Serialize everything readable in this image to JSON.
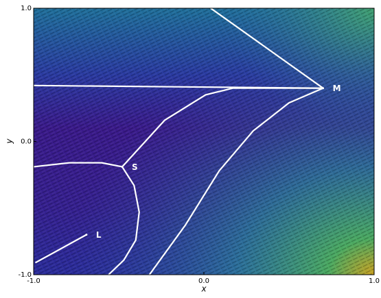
{
  "chart_data": {
    "type": "streamplot",
    "xlabel": "x",
    "ylabel": "y",
    "xlim": [
      -1,
      1
    ],
    "ylim": [
      -1,
      1
    ],
    "xticks": [
      {
        "value": -1,
        "label": "-1.0"
      },
      {
        "value": 0,
        "label": "0.0"
      },
      {
        "value": 1,
        "label": "1.0"
      }
    ],
    "yticks": [
      {
        "value": -1,
        "label": "-1.0"
      },
      {
        "value": 0,
        "label": "0.0"
      },
      {
        "value": 1,
        "label": "1.0"
      }
    ],
    "curves": [
      {
        "color": "#ffffff",
        "x": [
          0.04,
          0.7
        ],
        "y": [
          1.0,
          0.4
        ]
      },
      {
        "color": "#ffffff",
        "x": [
          -1.0,
          0.7
        ],
        "y": [
          0.42,
          0.4
        ]
      },
      {
        "color": "#ffffff",
        "x": [
          -0.48,
          -0.23,
          0.01,
          0.17,
          0.7
        ],
        "y": [
          -0.19,
          0.16,
          0.35,
          0.4,
          0.4
        ]
      },
      {
        "color": "#ffffff",
        "x": [
          -1.0,
          -0.79,
          -0.6,
          -0.48
        ],
        "y": [
          -0.19,
          -0.16,
          -0.16,
          -0.19
        ]
      },
      {
        "color": "#ffffff",
        "x": [
          -0.48,
          -0.41,
          -0.38,
          -0.4,
          -0.47,
          -0.56
        ],
        "y": [
          -0.19,
          -0.33,
          -0.53,
          -0.74,
          -0.89,
          -1.0
        ]
      },
      {
        "color": "#ffffff",
        "x": [
          -0.32,
          -0.11,
          0.09,
          0.29,
          0.5,
          0.7
        ],
        "y": [
          -1.0,
          -0.63,
          -0.22,
          0.08,
          0.29,
          0.4
        ]
      },
      {
        "color": "#ffffff",
        "x": [
          -0.99,
          -0.69
        ],
        "y": [
          -0.91,
          -0.7
        ]
      }
    ],
    "points": [
      {
        "label": "L",
        "x": -0.69,
        "y": -0.7
      },
      {
        "label": "S",
        "x": -0.48,
        "y": -0.19
      },
      {
        "label": "M",
        "x": 0.7,
        "y": 0.4
      }
    ]
  }
}
